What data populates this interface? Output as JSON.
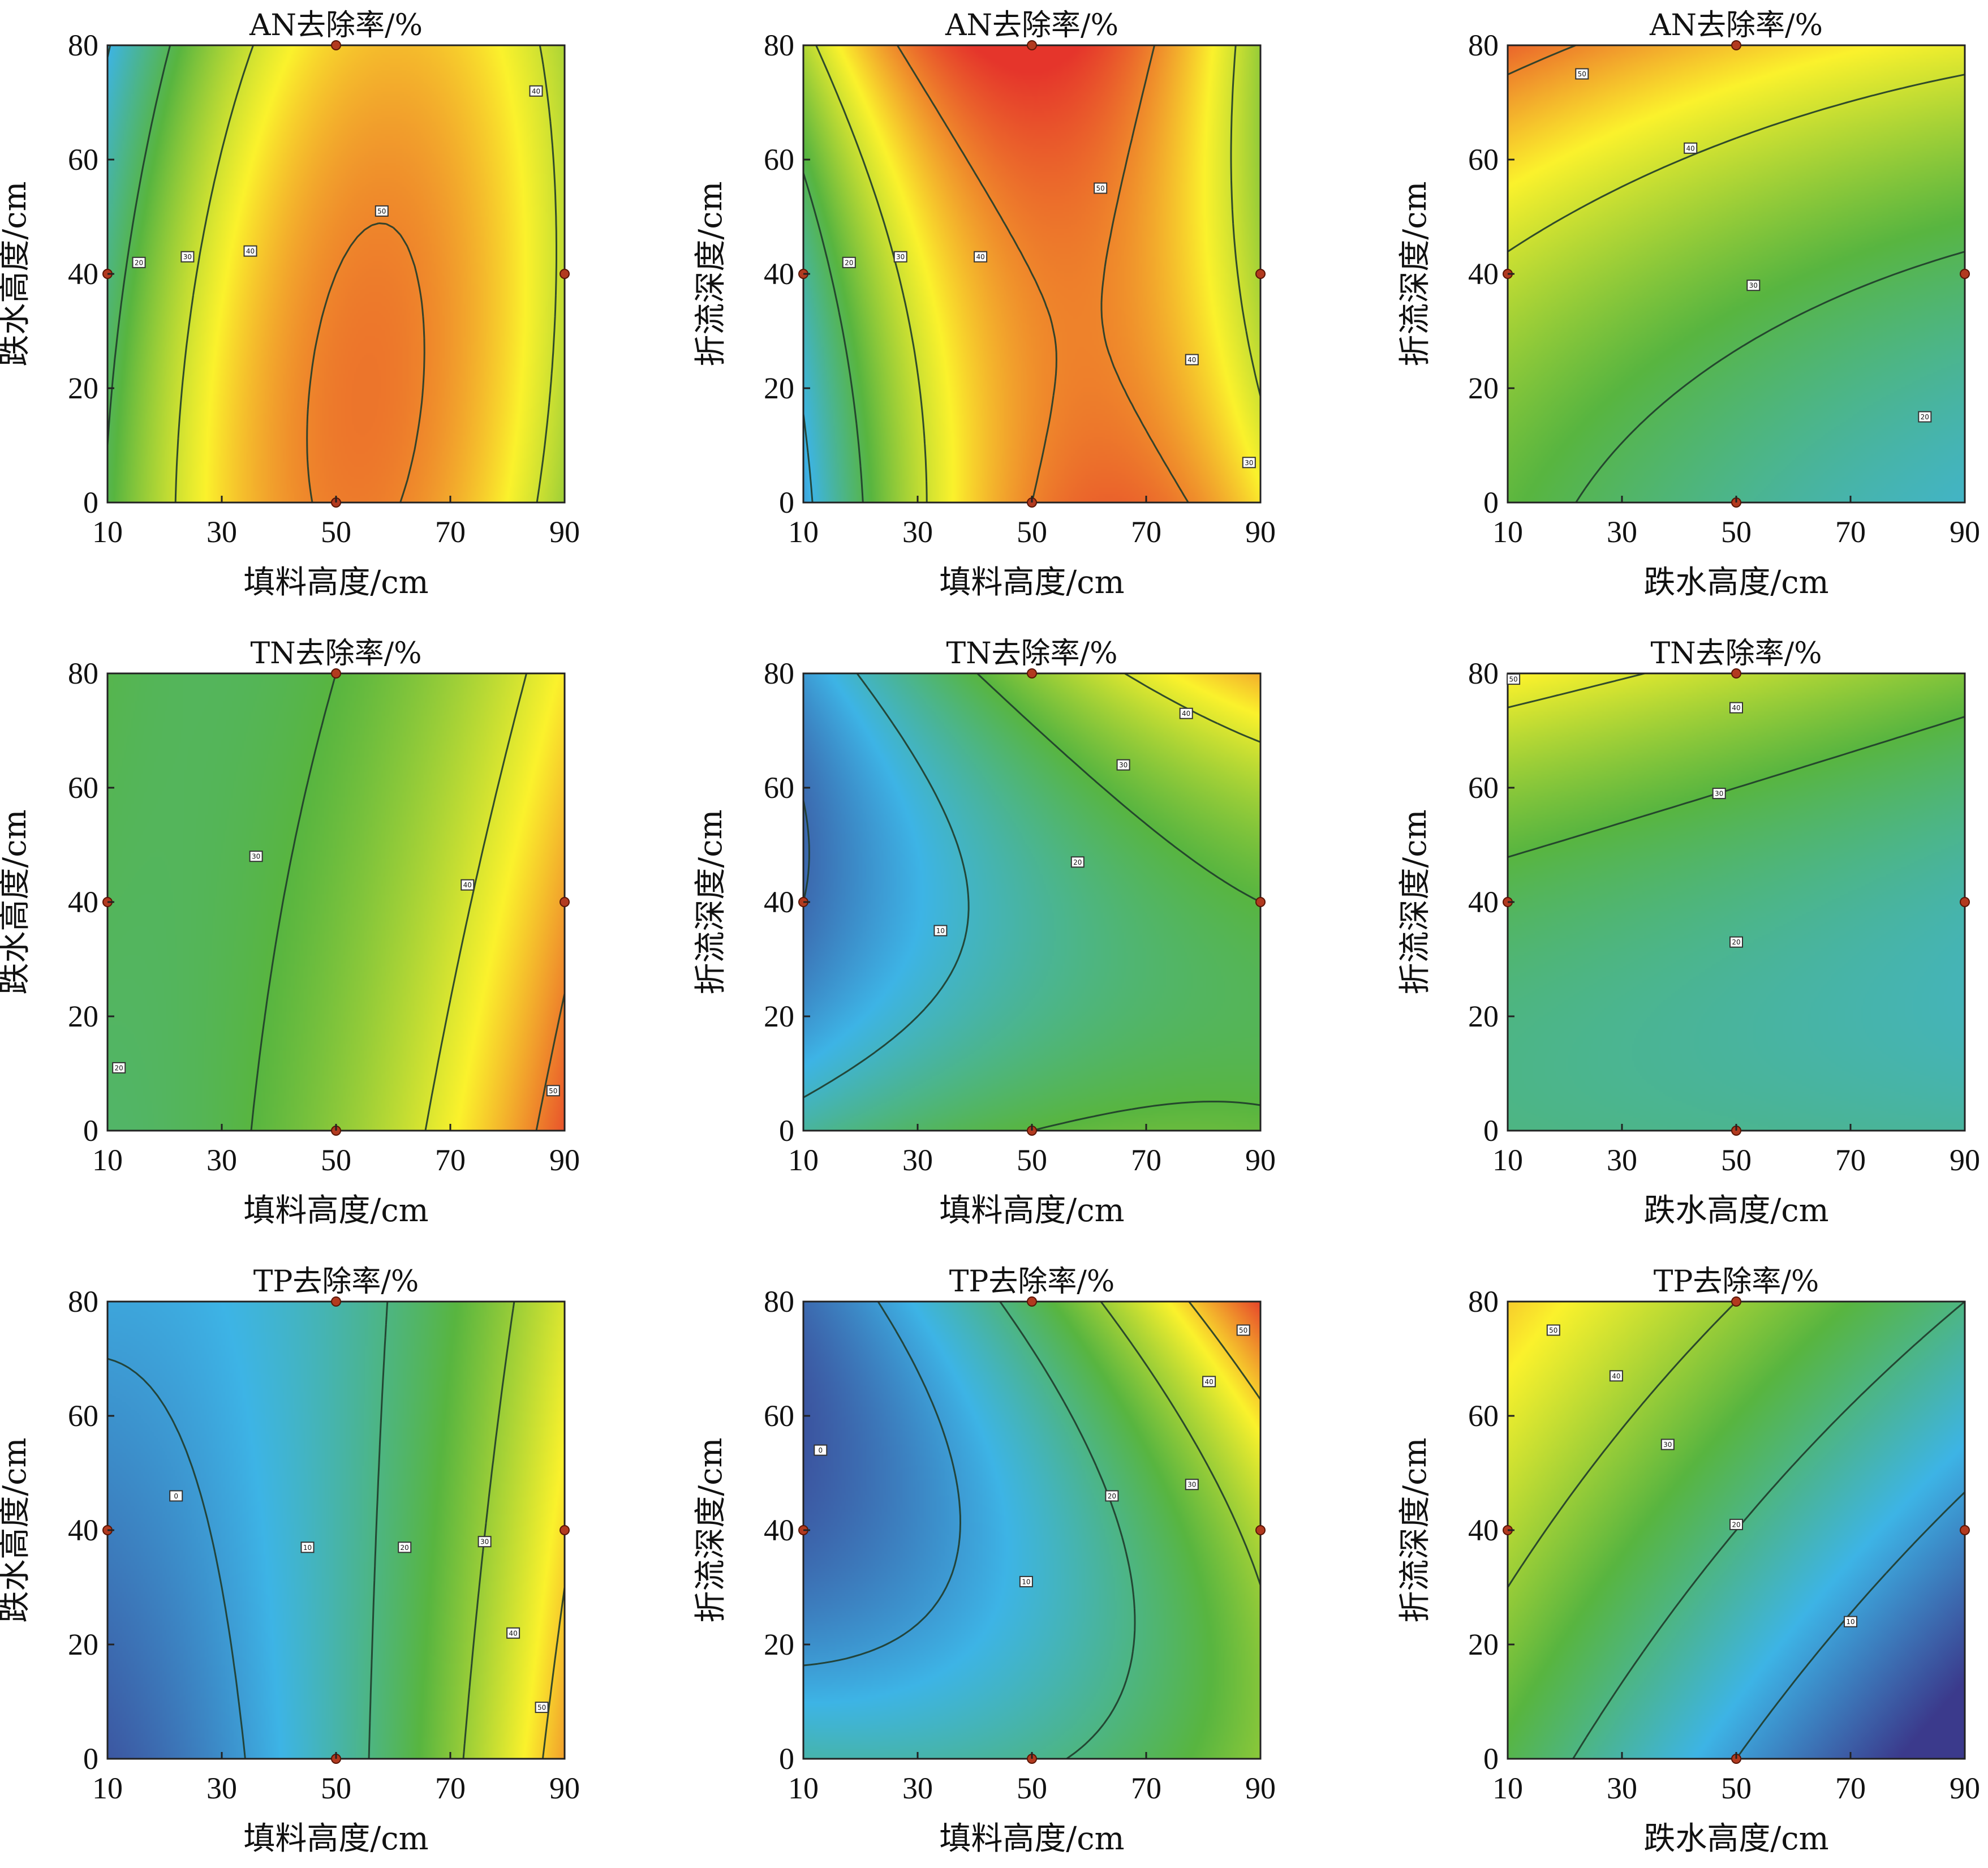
{
  "colors": {
    "scale": [
      "#3b3a8c",
      "#3db4e6",
      "#58b540",
      "#fbf22c",
      "#e5352b"
    ]
  },
  "chart_data": [
    {
      "type": "heatmap",
      "title": "AN去除率/%",
      "xlabel": "填料高度/cm",
      "ylabel": "跌水高度/cm",
      "xlim": [
        10,
        90
      ],
      "ylim": [
        0,
        80
      ],
      "xticks": [
        10,
        30,
        50,
        70,
        90
      ],
      "yticks": [
        0,
        20,
        40,
        60,
        80
      ],
      "colorscale_range": [
        8,
        55
      ],
      "model": {
        "a": 50,
        "bx": 6,
        "by": -2.5,
        "bxy": 3,
        "cxx": -17,
        "cyy": -2
      },
      "contour_levels": [
        20,
        30,
        40,
        50
      ],
      "contour_labels": [
        {
          "level": "20",
          "x": 15.5,
          "y": 42
        },
        {
          "level": "30",
          "x": 24,
          "y": 43
        },
        {
          "level": "40",
          "x": 35,
          "y": 44
        },
        {
          "level": "50",
          "x": 58,
          "y": 51
        },
        {
          "level": "40",
          "x": 85,
          "y": 72
        }
      ],
      "design_points": [
        [
          10,
          40
        ],
        [
          50,
          0
        ],
        [
          50,
          80
        ],
        [
          90,
          40
        ]
      ]
    },
    {
      "type": "heatmap",
      "title": "AN去除率/%",
      "xlabel": "填料高度/cm",
      "ylabel": "折流深度/cm",
      "xlim": [
        10,
        90
      ],
      "ylim": [
        0,
        80
      ],
      "xticks": [
        10,
        30,
        50,
        70,
        90
      ],
      "yticks": [
        0,
        20,
        40,
        60,
        80
      ],
      "colorscale_range": [
        8,
        55
      ],
      "model": {
        "a": 50,
        "bx": 6,
        "by": 3,
        "bxy": -7,
        "cxx": -19,
        "cyy": 3
      },
      "contour_levels": [
        20,
        30,
        40,
        50
      ],
      "contour_labels": [
        {
          "level": "20",
          "x": 18,
          "y": 42
        },
        {
          "level": "30",
          "x": 27,
          "y": 43
        },
        {
          "level": "40",
          "x": 41,
          "y": 43
        },
        {
          "level": "50",
          "x": 62,
          "y": 55
        },
        {
          "level": "40",
          "x": 78,
          "y": 25
        },
        {
          "level": "30",
          "x": 88,
          "y": 7
        }
      ],
      "design_points": [
        [
          10,
          40
        ],
        [
          50,
          0
        ],
        [
          50,
          80
        ],
        [
          90,
          40
        ]
      ]
    },
    {
      "type": "heatmap",
      "title": "AN去除率/%",
      "xlabel": "跌水高度/cm",
      "ylabel": "折流深度/cm",
      "xlim": [
        10,
        90
      ],
      "ylim": [
        0,
        80
      ],
      "xticks": [
        10,
        30,
        50,
        70,
        90
      ],
      "yticks": [
        0,
        20,
        40,
        60,
        80
      ],
      "colorscale_range": [
        8,
        55
      ],
      "model": {
        "a": 33,
        "bx": -5,
        "by": 10,
        "bxy": 0,
        "cxx": 1,
        "cyy": 3
      },
      "contour_levels": [
        20,
        30,
        40,
        50
      ],
      "contour_labels": [
        {
          "level": "50",
          "x": 23,
          "y": 75
        },
        {
          "level": "40",
          "x": 42,
          "y": 62
        },
        {
          "level": "30",
          "x": 53,
          "y": 38
        },
        {
          "level": "20",
          "x": 83,
          "y": 15
        }
      ],
      "design_points": [
        [
          10,
          40
        ],
        [
          50,
          0
        ],
        [
          50,
          80
        ],
        [
          90,
          40
        ]
      ]
    },
    {
      "type": "heatmap",
      "title": "TN去除率/%",
      "xlabel": "填料高度/cm",
      "ylabel": "跌水高度/cm",
      "xlim": [
        10,
        90
      ],
      "ylim": [
        0,
        80
      ],
      "xticks": [
        10,
        30,
        50,
        70,
        90
      ],
      "yticks": [
        0,
        20,
        40,
        60,
        80
      ],
      "colorscale_range": [
        5,
        55
      ],
      "model": {
        "a": 32,
        "bx": 10,
        "by": -2,
        "bxy": -3,
        "cxx": 6,
        "cyy": 0
      },
      "contour_levels": [
        20,
        30,
        40,
        50
      ],
      "contour_labels": [
        {
          "level": "30",
          "x": 36,
          "y": 48
        },
        {
          "level": "40",
          "x": 73,
          "y": 43
        },
        {
          "level": "20",
          "x": 12,
          "y": 11
        },
        {
          "level": "50",
          "x": 88,
          "y": 7
        }
      ],
      "design_points": [
        [
          10,
          40
        ],
        [
          50,
          0
        ],
        [
          50,
          80
        ],
        [
          90,
          40
        ]
      ]
    },
    {
      "type": "heatmap",
      "title": "TN去除率/%",
      "xlabel": "填料高度/cm",
      "ylabel": "折流深度/cm",
      "xlim": [
        10,
        90
      ],
      "ylim": [
        0,
        80
      ],
      "xticks": [
        10,
        30,
        50,
        70,
        90
      ],
      "yticks": [
        0,
        20,
        40,
        60,
        80
      ],
      "colorscale_range": [
        5,
        55
      ],
      "model": {
        "a": 23,
        "bx": 10,
        "by": 2,
        "bxy": 6,
        "cxx": -3,
        "cyy": 9
      },
      "contour_levels": [
        10,
        20,
        30,
        40,
        50
      ],
      "contour_labels": [
        {
          "level": "10",
          "x": 34,
          "y": 35
        },
        {
          "level": "20",
          "x": 58,
          "y": 47
        },
        {
          "level": "30",
          "x": 66,
          "y": 64
        },
        {
          "level": "40",
          "x": 77,
          "y": 73
        }
      ],
      "design_points": [
        [
          10,
          40
        ],
        [
          50,
          0
        ],
        [
          50,
          80
        ],
        [
          90,
          40
        ]
      ]
    },
    {
      "type": "heatmap",
      "title": "TN去除率/%",
      "xlabel": "跌水高度/cm",
      "ylabel": "折流深度/cm",
      "xlim": [
        10,
        90
      ],
      "ylim": [
        0,
        80
      ],
      "xticks": [
        10,
        30,
        50,
        70,
        90
      ],
      "yticks": [
        0,
        20,
        40,
        60,
        80
      ],
      "colorscale_range": [
        5,
        55
      ],
      "model": {
        "a": 25,
        "bx": -3,
        "by": 7,
        "bxy": -2,
        "cxx": 0,
        "cyy": 6
      },
      "contour_levels": [
        20,
        30,
        40,
        50
      ],
      "contour_labels": [
        {
          "level": "50",
          "x": 11,
          "y": 79
        },
        {
          "level": "40",
          "x": 50,
          "y": 74
        },
        {
          "level": "30",
          "x": 47,
          "y": 59
        },
        {
          "level": "20",
          "x": 50,
          "y": 33
        }
      ],
      "design_points": [
        [
          10,
          40
        ],
        [
          50,
          0
        ],
        [
          50,
          80
        ],
        [
          90,
          40
        ]
      ]
    },
    {
      "type": "heatmap",
      "title": "TP去除率/%",
      "xlabel": "填料高度/cm",
      "ylabel": "跌水高度/cm",
      "xlim": [
        10,
        90
      ],
      "ylim": [
        0,
        80
      ],
      "xticks": [
        10,
        30,
        50,
        70,
        90
      ],
      "yticks": [
        0,
        20,
        40,
        60,
        80
      ],
      "colorscale_range": [
        0,
        50
      ],
      "model": {
        "a": 17,
        "bx": 16,
        "by": 0,
        "bxy": -4,
        "cxx": 6,
        "cyy": 0
      },
      "contour_levels": [
        0,
        10,
        20,
        30,
        40,
        50
      ],
      "contour_labels": [
        {
          "level": "0",
          "x": 22,
          "y": 46
        },
        {
          "level": "10",
          "x": 45,
          "y": 37
        },
        {
          "level": "20",
          "x": 62,
          "y": 37
        },
        {
          "level": "30",
          "x": 76,
          "y": 38
        },
        {
          "level": "40",
          "x": 81,
          "y": 22
        },
        {
          "level": "50",
          "x": 86,
          "y": 9
        }
      ],
      "design_points": [
        [
          10,
          40
        ],
        [
          50,
          0
        ],
        [
          50,
          80
        ],
        [
          90,
          40
        ]
      ]
    },
    {
      "type": "heatmap",
      "title": "TP去除率/%",
      "xlabel": "填料高度/cm",
      "ylabel": "折流深度/cm",
      "xlim": [
        10,
        90
      ],
      "ylim": [
        0,
        80
      ],
      "xticks": [
        10,
        30,
        50,
        70,
        90
      ],
      "yticks": [
        0,
        20,
        40,
        60,
        80
      ],
      "colorscale_range": [
        0,
        50
      ],
      "model": {
        "a": 14,
        "bx": 14,
        "by": 2,
        "bxy": 8,
        "cxx": 4,
        "cyy": 7
      },
      "contour_levels": [
        0,
        10,
        20,
        30,
        40,
        50
      ],
      "contour_labels": [
        {
          "level": "0",
          "x": 13,
          "y": 54
        },
        {
          "level": "10",
          "x": 49,
          "y": 31
        },
        {
          "level": "20",
          "x": 64,
          "y": 46
        },
        {
          "level": "30",
          "x": 78,
          "y": 48
        },
        {
          "level": "40",
          "x": 81,
          "y": 66
        },
        {
          "level": "50",
          "x": 87,
          "y": 75
        }
      ],
      "design_points": [
        [
          10,
          40
        ],
        [
          50,
          0
        ],
        [
          50,
          80
        ],
        [
          90,
          40
        ]
      ]
    },
    {
      "type": "heatmap",
      "title": "TP去除率/%",
      "xlabel": "跌水高度/cm",
      "ylabel": "折流深度/cm",
      "xlim": [
        10,
        90
      ],
      "ylim": [
        0,
        80
      ],
      "xticks": [
        10,
        30,
        50,
        70,
        90
      ],
      "yticks": [
        0,
        20,
        40,
        60,
        80
      ],
      "colorscale_range": [
        0,
        50
      ],
      "model": {
        "a": 20,
        "bx": -12,
        "by": 10,
        "bxy": 2,
        "cxx": 0,
        "cyy": 0
      },
      "contour_levels": [
        10,
        20,
        30,
        40,
        50
      ],
      "contour_labels": [
        {
          "level": "50",
          "x": 18,
          "y": 75
        },
        {
          "level": "40",
          "x": 29,
          "y": 67
        },
        {
          "level": "30",
          "x": 38,
          "y": 55
        },
        {
          "level": "20",
          "x": 50,
          "y": 41
        },
        {
          "level": "10",
          "x": 70,
          "y": 24
        }
      ],
      "design_points": [
        [
          10,
          40
        ],
        [
          50,
          0
        ],
        [
          50,
          80
        ],
        [
          90,
          40
        ]
      ]
    }
  ]
}
